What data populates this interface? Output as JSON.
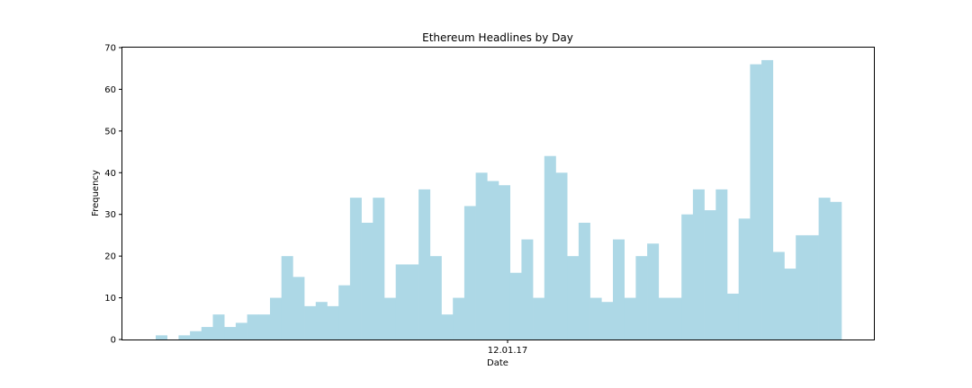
{
  "chart_data": {
    "type": "bar",
    "title": "Ethereum Headlines by Day",
    "xlabel": "Date",
    "ylabel": "Frequency",
    "ylim": [
      0,
      70
    ],
    "yticks": [
      0,
      10,
      20,
      30,
      40,
      50,
      60,
      70
    ],
    "xtick_labels": [
      "12.01.17"
    ],
    "grid": false,
    "bar_color": "#add8e6",
    "values": [
      1,
      0,
      1,
      2,
      3,
      6,
      3,
      4,
      6,
      6,
      10,
      20,
      15,
      8,
      9,
      8,
      13,
      34,
      28,
      34,
      10,
      18,
      18,
      36,
      20,
      6,
      10,
      32,
      40,
      38,
      37,
      16,
      24,
      10,
      44,
      40,
      20,
      28,
      10,
      9,
      24,
      10,
      20,
      23,
      10,
      10,
      30,
      36,
      31,
      36,
      11,
      29,
      66,
      67,
      21,
      17,
      25,
      25,
      34,
      33
    ]
  }
}
